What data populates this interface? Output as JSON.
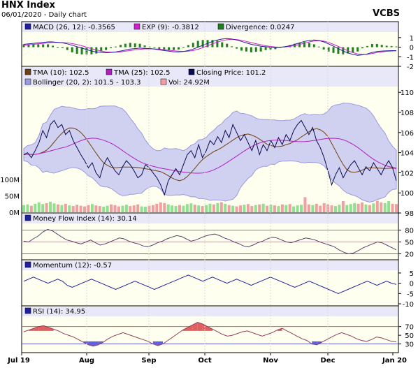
{
  "header": {
    "title": "HNX Index",
    "subtitle": "06/01/2020 - Daily chart",
    "brand": "VCBS"
  },
  "colors": {
    "panel_bg": "#fffff0",
    "legend_bg": "#e8e8f8",
    "band_fill": "#c8c8f0",
    "band_line": "#9a9ae0",
    "close": "#0a0a50",
    "tma10": "#704010",
    "tma25": "#b020c0",
    "macd": "#2020a0",
    "exp": "#d020d0",
    "div_pos": "#208020",
    "vol_up": "#90e090",
    "vol_down": "#f0a0a0",
    "rsi_hi": "#e06060",
    "rsi_lo": "#6060e0",
    "guide_red": "#d06060",
    "guide_blue": "#6060d0"
  },
  "months": [
    "Jul 19",
    "Aug",
    "Sep",
    "Oct",
    "Nov",
    "Dec",
    "Jan 20"
  ],
  "panels": {
    "macd": {
      "legend": [
        "MACD (26, 12): -0.3565",
        "EXP (9): -0.3812",
        "Divergence: 0.0247"
      ],
      "legend_colors": [
        "macd",
        "exp",
        "div_pos"
      ],
      "ticks": [
        "1",
        "0",
        "-1",
        "-2"
      ]
    },
    "price": {
      "legend_row1": [
        "TMA (10): 102.5",
        "TMA (25): 102.5",
        "Closing Price: 101.2"
      ],
      "legend_row1_colors": [
        "tma10",
        "tma25",
        "close"
      ],
      "legend_row2": [
        "Bollinger (20, 2): 101.5 - 103.3",
        "Vol: 24.92M"
      ],
      "legend_row2_colors": [
        "band_line",
        "vol_down"
      ],
      "ticks": [
        "110",
        "108",
        "106",
        "104",
        "102",
        "100",
        "98"
      ],
      "vol_ticks": [
        "100M",
        "50M",
        "0M"
      ]
    },
    "mfi": {
      "legend": [
        "Money Flow Index (14): 30.14"
      ],
      "ticks": [
        "80",
        "50",
        "20"
      ]
    },
    "momentum": {
      "legend": [
        "Momentum (12): -0.57"
      ],
      "ticks": [
        "5",
        "0",
        "-5",
        "-10"
      ]
    },
    "rsi": {
      "legend": [
        "RSI (14): 34.95"
      ],
      "ticks": [
        "70",
        "50",
        "30"
      ]
    }
  },
  "chart_data": {
    "type": "line",
    "close": [
      103.8,
      104.0,
      103.5,
      104.2,
      105.0,
      106.2,
      105.5,
      106.8,
      107.2,
      106.5,
      106.8,
      105.8,
      106.2,
      105.2,
      104.5,
      103.8,
      103.2,
      102.5,
      103.0,
      102.0,
      101.5,
      102.8,
      103.5,
      102.8,
      102.2,
      101.8,
      102.6,
      103.2,
      102.8,
      102.2,
      101.5,
      101.8,
      102.8,
      102.5,
      102.0,
      101.5,
      100.8,
      99.8,
      101.2,
      101.8,
      102.4,
      101.8,
      102.8,
      103.8,
      104.2,
      103.5,
      104.8,
      103.5,
      104.2,
      105.2,
      104.8,
      105.6,
      105.0,
      106.2,
      105.5,
      106.8,
      106.0,
      105.2,
      105.8,
      105.0,
      104.2,
      105.2,
      103.8,
      104.8,
      104.2,
      105.2,
      104.5,
      105.5,
      104.8,
      105.8,
      105.2,
      106.2,
      106.8,
      107.2,
      106.5,
      105.8,
      106.5,
      105.2,
      104.5,
      103.5,
      102.2,
      100.8,
      101.8,
      102.5,
      101.5,
      102.2,
      102.8,
      103.2,
      102.5,
      101.8,
      102.6,
      102.2,
      103.0,
      102.4,
      101.8,
      102.6,
      103.2,
      102.5,
      101.2
    ],
    "volume": [
      22,
      24,
      20,
      26,
      30,
      25,
      28,
      32,
      27,
      24,
      22,
      26,
      21,
      19,
      23,
      20,
      18,
      22,
      25,
      21,
      19,
      17,
      20,
      24,
      22,
      18,
      20,
      23,
      19,
      21,
      24,
      18,
      17,
      20,
      22,
      26,
      30,
      28,
      24,
      21,
      19,
      22,
      20,
      25,
      27,
      23,
      21,
      19,
      22,
      26,
      24,
      28,
      31,
      26,
      22,
      20,
      18,
      21,
      23,
      25,
      19,
      22,
      24,
      26,
      20,
      23,
      21,
      19,
      24,
      22,
      25,
      18,
      21,
      23,
      46,
      24,
      22,
      26,
      20,
      28,
      24,
      21,
      19,
      23,
      34,
      22,
      25,
      28,
      26,
      30,
      24,
      22,
      27,
      35,
      30,
      28,
      34,
      26,
      24.92
    ],
    "macd": [
      0.3,
      0.35,
      0.4,
      0.45,
      0.5,
      0.55,
      0.55,
      0.5,
      0.45,
      0.35,
      0.2,
      0.05,
      -0.1,
      -0.25,
      -0.4,
      -0.5,
      -0.55,
      -0.58,
      -0.55,
      -0.5,
      -0.4,
      -0.3,
      -0.2,
      -0.15,
      -0.1,
      -0.12,
      -0.15,
      -0.2,
      -0.28,
      -0.35,
      -0.42,
      -0.48,
      -0.5,
      -0.45,
      -0.35,
      -0.2,
      0.0,
      0.2,
      0.4,
      0.6,
      0.75,
      0.85,
      0.9,
      0.85,
      0.75,
      0.6,
      0.45,
      0.3,
      0.2,
      0.1,
      0.05,
      0.0,
      -0.05,
      0.0,
      0.05,
      0.15,
      0.3,
      0.45,
      0.6,
      0.7,
      0.75,
      0.7,
      0.55,
      0.35,
      0.1,
      -0.15,
      -0.4,
      -0.6,
      -0.75,
      -0.85,
      -0.8,
      -0.7,
      -0.55,
      -0.45,
      -0.4,
      -0.38,
      -0.36,
      -0.3565
    ],
    "exp": [
      0.2,
      0.25,
      0.3,
      0.35,
      0.4,
      0.45,
      0.5,
      0.5,
      0.48,
      0.45,
      0.38,
      0.28,
      0.15,
      0.0,
      -0.15,
      -0.28,
      -0.4,
      -0.48,
      -0.52,
      -0.52,
      -0.48,
      -0.42,
      -0.35,
      -0.28,
      -0.22,
      -0.18,
      -0.17,
      -0.18,
      -0.21,
      -0.26,
      -0.32,
      -0.38,
      -0.42,
      -0.44,
      -0.42,
      -0.35,
      -0.22,
      -0.05,
      0.15,
      0.35,
      0.52,
      0.68,
      0.78,
      0.82,
      0.8,
      0.72,
      0.6,
      0.48,
      0.36,
      0.25,
      0.15,
      0.08,
      0.02,
      0.0,
      0.02,
      0.08,
      0.18,
      0.3,
      0.42,
      0.55,
      0.65,
      0.68,
      0.63,
      0.5,
      0.3,
      0.08,
      -0.15,
      -0.38,
      -0.56,
      -0.7,
      -0.76,
      -0.74,
      -0.66,
      -0.56,
      -0.48,
      -0.43,
      -0.4,
      -0.3812
    ],
    "mfi": [
      52,
      50,
      58,
      65,
      75,
      82,
      78,
      70,
      62,
      55,
      52,
      48,
      45,
      50,
      55,
      48,
      42,
      45,
      50,
      55,
      60,
      58,
      52,
      48,
      45,
      40,
      38,
      42,
      48,
      52,
      58,
      62,
      66,
      64,
      58,
      52,
      55,
      60,
      65,
      68,
      70,
      66,
      60,
      56,
      50,
      46,
      40,
      38,
      42,
      48,
      52,
      58,
      62,
      60,
      55,
      50,
      48,
      52,
      56,
      60,
      58,
      55,
      50,
      46,
      42,
      38,
      30,
      24,
      20,
      22,
      28,
      35,
      40,
      45,
      50,
      48,
      42,
      36,
      30.14
    ],
    "momentum": [
      1,
      2,
      3,
      2,
      1,
      0,
      1,
      2,
      1,
      -1,
      -2,
      -1,
      0,
      1,
      2,
      1,
      0,
      -1,
      -2,
      -3,
      -2,
      -1,
      0,
      1,
      0,
      -1,
      -2,
      -3,
      -2,
      -1,
      0,
      1,
      2,
      3,
      4,
      3,
      2,
      1,
      2,
      3,
      2,
      1,
      0,
      1,
      2,
      1,
      0,
      -1,
      0,
      1,
      2,
      3,
      2,
      1,
      0,
      -1,
      -2,
      -1,
      0,
      1,
      0,
      -1,
      -2,
      -3,
      -4,
      -5,
      -4,
      -3,
      -2,
      -1,
      0,
      1,
      0,
      -1,
      0,
      1,
      0,
      -0.57
    ],
    "rsi": [
      58,
      62,
      66,
      70,
      72,
      68,
      64,
      60,
      54,
      50,
      46,
      40,
      34,
      28,
      25,
      28,
      34,
      42,
      48,
      52,
      56,
      52,
      48,
      44,
      40,
      36,
      30,
      26,
      30,
      38,
      46,
      54,
      62,
      68,
      74,
      80,
      76,
      70,
      64,
      58,
      52,
      48,
      50,
      54,
      58,
      60,
      56,
      52,
      48,
      52,
      56,
      62,
      66,
      60,
      54,
      48,
      42,
      38,
      30,
      28,
      34,
      40,
      46,
      52,
      56,
      52,
      48,
      42,
      38,
      36,
      40,
      46,
      44,
      40,
      36,
      34.95
    ]
  }
}
